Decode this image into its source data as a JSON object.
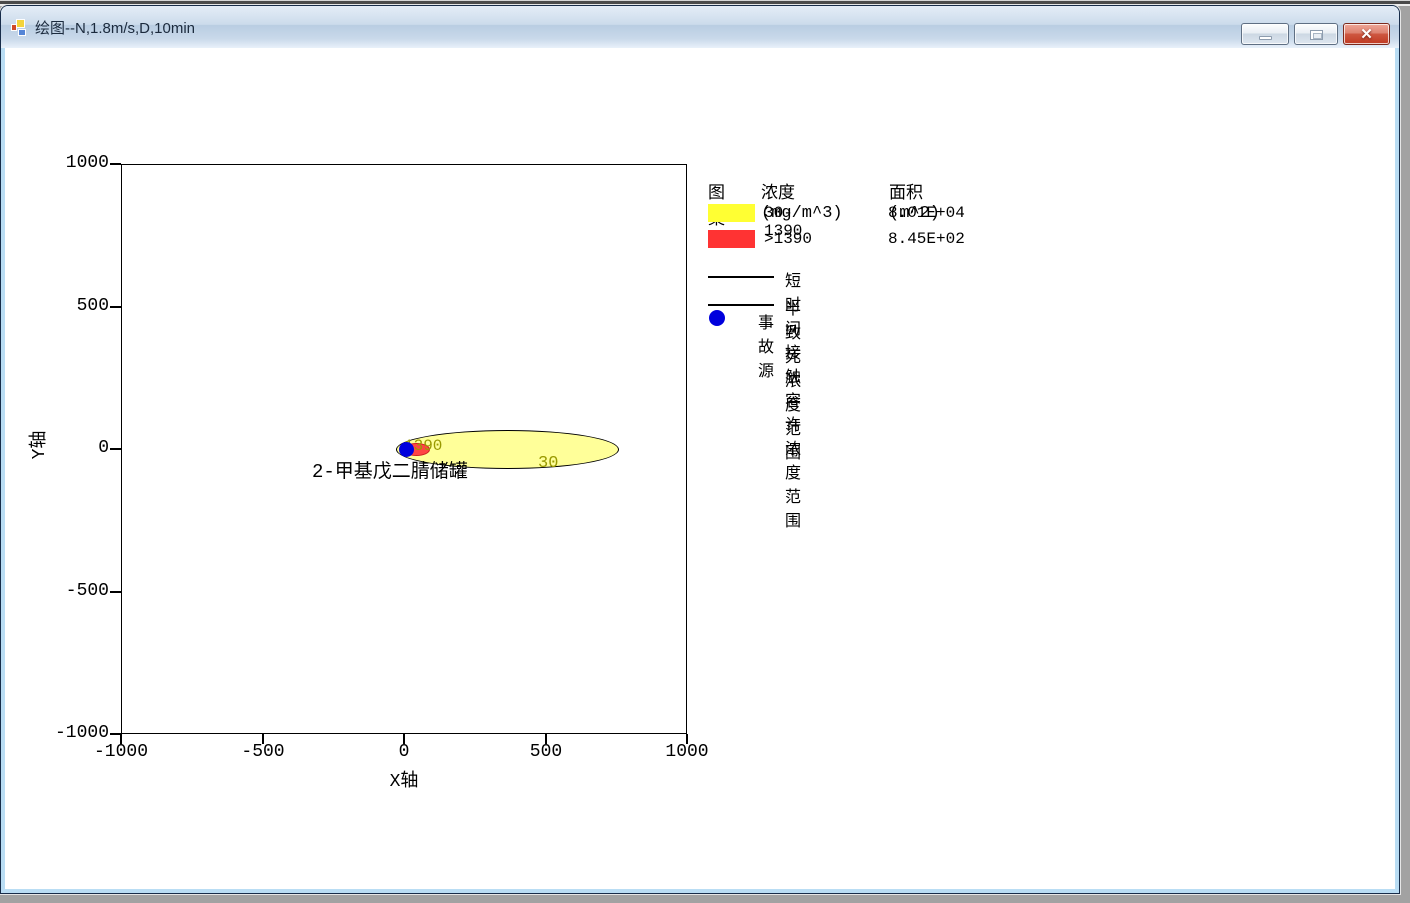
{
  "window": {
    "title": "绘图--N,1.8m/s,D,10min",
    "close_glyph": "✕"
  },
  "chart": {
    "y_axis": {
      "label": "Y轴",
      "ticks": [
        "1000",
        "500",
        "0",
        "-500",
        "-1000"
      ]
    },
    "x_axis": {
      "label": "X轴",
      "ticks": [
        "-1000",
        "-500",
        "0",
        "500",
        "1000"
      ]
    },
    "annotations": {
      "source_label": "2-甲基戊二腈储罐",
      "inner_contour_label": "1390",
      "outer_contour_label": "30"
    }
  },
  "legend": {
    "header": {
      "pattern": "图案",
      "concentration": "浓度(mg/m^3)",
      "area": "面积(m^2)"
    },
    "rows": [
      {
        "range": "30-1390",
        "area": "8.01E+04"
      },
      {
        "range": ">1390",
        "area": "8.45E+02"
      },
      {
        "label": "短时间接触容许浓度范围"
      },
      {
        "label": "半致死浓度范围"
      },
      {
        "label": "事故源"
      }
    ]
  },
  "colors": {
    "yellow_zone": "#ffff99",
    "yellow_swatch": "#ffff33",
    "red_zone": "#ff4444",
    "red_swatch": "#ff3333",
    "source_dot": "#0000dd",
    "contour_label_text": "#999900",
    "titlebar_tint": "#c9d9ea",
    "window_border": "#b9ddf4"
  },
  "chart_data": {
    "type": "area",
    "subtype": "gas-dispersion-contour-ellipses",
    "title": "",
    "xlabel": "X轴",
    "ylabel": "Y轴",
    "xlim": [
      -1000,
      1000
    ],
    "ylim": [
      -1000,
      1000
    ],
    "xticks": [
      -1000,
      -500,
      0,
      500,
      1000
    ],
    "yticks": [
      1000,
      500,
      0,
      -500,
      -1000
    ],
    "grid": false,
    "legend_position": "right-outside",
    "series": [
      {
        "name": "30-1390",
        "concentration_mg_m3": "30-1390",
        "area_m2": "8.01E+04",
        "color": "#ffff99",
        "shape": "ellipse",
        "x_extent": [
          -30,
          760
        ],
        "y_extent": [
          -70,
          70
        ],
        "contour_label": "30"
      },
      {
        "name": ">1390",
        "concentration_mg_m3": ">1390",
        "area_m2": "8.45E+02",
        "color": "#ff4444",
        "shape": "ellipse",
        "x_extent": [
          -5,
          85
        ],
        "y_extent": [
          -22,
          22
        ],
        "contour_label": "1390"
      }
    ],
    "source_point": {
      "x": 0,
      "y": 0,
      "label": "2-甲基戊二腈储罐",
      "color": "#0000dd"
    }
  }
}
